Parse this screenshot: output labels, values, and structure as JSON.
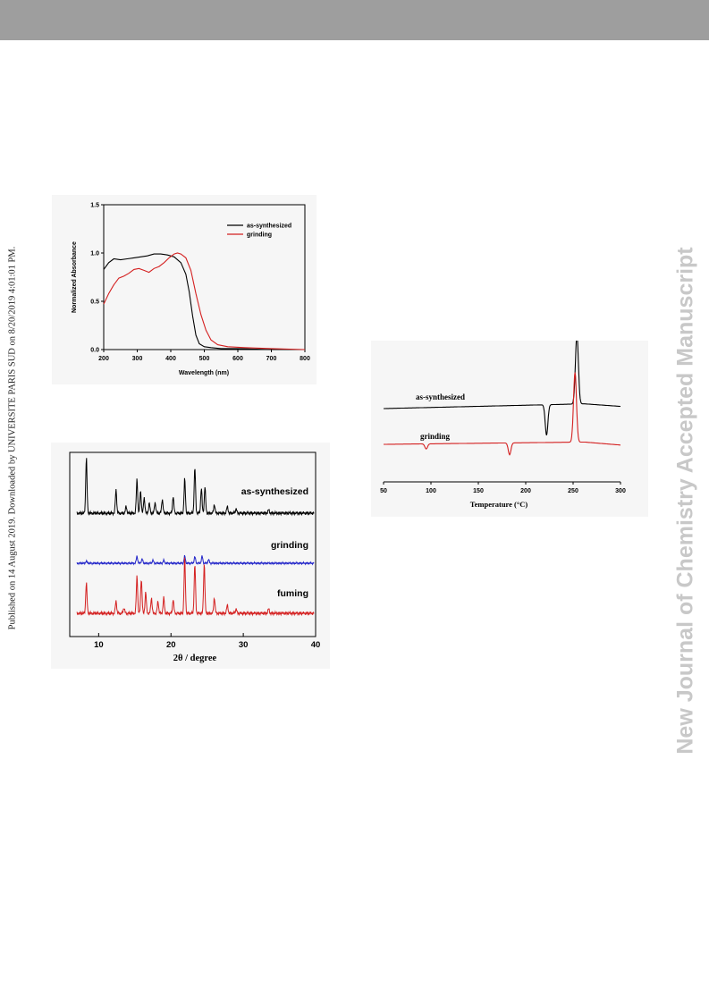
{
  "header_bar_color": "#9e9e9e",
  "side_text_left": "Published on 14 August 2019. Downloaded by UNIVERSITE PARIS SUD on 8/20/2019 4:01:01 PM.",
  "side_text_right": "New Journal of Chemistry Accepted Manuscript",
  "chart_data": [
    {
      "type": "line",
      "title": "",
      "xlabel": "Wavelength (nm)",
      "ylabel": "Normalized Absorbance",
      "xlim": [
        200,
        800
      ],
      "ylim": [
        0.0,
        1.5
      ],
      "xticks": [
        "200",
        "300",
        "400",
        "500",
        "600",
        "700",
        "800"
      ],
      "yticks": [
        "0.0",
        "0.5",
        "1.0",
        "1.5"
      ],
      "legend_position": "top-right",
      "series": [
        {
          "name": "as-synthesized",
          "color": "#000000",
          "x": [
            200,
            215,
            230,
            250,
            270,
            290,
            310,
            330,
            350,
            370,
            390,
            410,
            430,
            445,
            455,
            465,
            475,
            485,
            500,
            520,
            550,
            600,
            700,
            800
          ],
          "y": [
            0.83,
            0.9,
            0.94,
            0.93,
            0.94,
            0.95,
            0.96,
            0.97,
            0.99,
            0.99,
            0.98,
            0.96,
            0.9,
            0.78,
            0.6,
            0.35,
            0.15,
            0.06,
            0.03,
            0.02,
            0.01,
            0.01,
            0.0,
            0.0
          ]
        },
        {
          "name": "grinding",
          "color": "#d42020",
          "x": [
            200,
            215,
            230,
            245,
            260,
            275,
            290,
            305,
            320,
            335,
            350,
            365,
            380,
            395,
            410,
            420,
            430,
            445,
            460,
            475,
            490,
            505,
            520,
            540,
            570,
            620,
            700,
            800
          ],
          "y": [
            0.47,
            0.58,
            0.67,
            0.74,
            0.76,
            0.79,
            0.83,
            0.84,
            0.82,
            0.8,
            0.84,
            0.86,
            0.9,
            0.95,
            0.99,
            1.0,
            0.99,
            0.95,
            0.82,
            0.58,
            0.36,
            0.2,
            0.1,
            0.05,
            0.03,
            0.02,
            0.01,
            0.0
          ]
        }
      ]
    },
    {
      "type": "line",
      "title": "",
      "xlabel": "2θ / degree",
      "ylabel": "",
      "xlim": [
        6,
        40
      ],
      "xticks": [
        "10",
        "20",
        "30",
        "40"
      ],
      "legend_position": "inline-right",
      "series": [
        {
          "name": "as-synthesized",
          "color": "#000000",
          "peaks": [
            [
              8.3,
              1.0
            ],
            [
              12.4,
              0.42
            ],
            [
              13.8,
              0.12
            ],
            [
              15.3,
              0.62
            ],
            [
              15.8,
              0.4
            ],
            [
              16.3,
              0.28
            ],
            [
              17.0,
              0.18
            ],
            [
              17.8,
              0.2
            ],
            [
              18.8,
              0.25
            ],
            [
              20.3,
              0.3
            ],
            [
              21.9,
              0.62
            ],
            [
              23.3,
              0.82
            ],
            [
              24.2,
              0.45
            ],
            [
              24.7,
              0.48
            ],
            [
              26.0,
              0.16
            ],
            [
              27.8,
              0.12
            ],
            [
              29.0,
              0.08
            ],
            [
              33.5,
              0.06
            ]
          ]
        },
        {
          "name": "grinding",
          "color": "#1f22c8",
          "peaks": [
            [
              8.3,
              0.06
            ],
            [
              15.3,
              0.2
            ],
            [
              16.0,
              0.12
            ],
            [
              17.5,
              0.08
            ],
            [
              19.0,
              0.08
            ],
            [
              21.9,
              0.2
            ],
            [
              23.3,
              0.18
            ],
            [
              24.3,
              0.2
            ],
            [
              25.2,
              0.1
            ]
          ]
        },
        {
          "name": "fuming",
          "color": "#d42020",
          "peaks": [
            [
              8.3,
              0.55
            ],
            [
              12.4,
              0.22
            ],
            [
              13.5,
              0.1
            ],
            [
              15.3,
              0.68
            ],
            [
              15.9,
              0.62
            ],
            [
              16.5,
              0.38
            ],
            [
              17.3,
              0.28
            ],
            [
              18.2,
              0.22
            ],
            [
              19.0,
              0.28
            ],
            [
              20.3,
              0.25
            ],
            [
              21.9,
              1.0
            ],
            [
              23.3,
              0.88
            ],
            [
              24.6,
              0.9
            ],
            [
              26.0,
              0.28
            ],
            [
              27.8,
              0.15
            ],
            [
              29.0,
              0.08
            ],
            [
              33.5,
              0.08
            ]
          ]
        }
      ]
    },
    {
      "type": "line",
      "title": "",
      "xlabel": "Temperature (°C)",
      "ylabel": "",
      "xlim": [
        50,
        300
      ],
      "xticks": [
        "50",
        "100",
        "150",
        "200",
        "250",
        "300"
      ],
      "legend_position": "inline-left",
      "series": [
        {
          "name": "as-synthesized",
          "color": "#000000",
          "events": [
            {
              "x": 222,
              "type": "endo",
              "depth": 0.9
            },
            {
              "x": 254,
              "type": "exo",
              "height": 1.0
            }
          ]
        },
        {
          "name": "grinding",
          "color": "#d42020",
          "events": [
            {
              "x": 95,
              "type": "endo",
              "depth": 0.15
            },
            {
              "x": 183,
              "type": "endo",
              "depth": 0.35
            },
            {
              "x": 252,
              "type": "exo",
              "height": 1.0
            }
          ]
        }
      ]
    }
  ]
}
